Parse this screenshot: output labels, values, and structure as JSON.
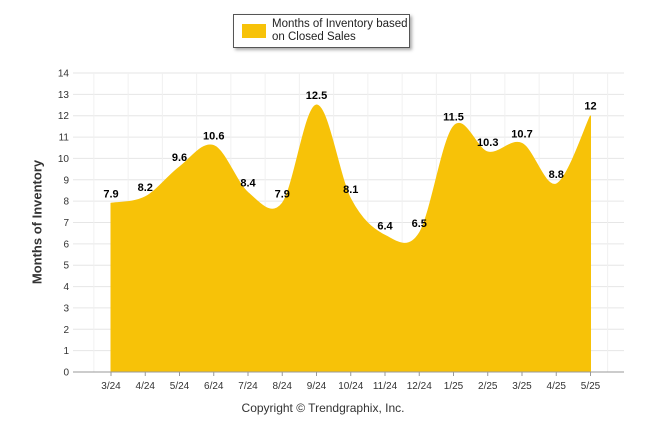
{
  "chart_data": {
    "type": "area",
    "categories": [
      "3/24",
      "4/24",
      "5/24",
      "6/24",
      "7/24",
      "8/24",
      "9/24",
      "10/24",
      "11/24",
      "12/24",
      "1/25",
      "2/25",
      "3/25",
      "4/25",
      "5/25"
    ],
    "series": [
      {
        "name": "Months of Inventory based on Closed Sales",
        "values": [
          7.9,
          8.2,
          9.6,
          10.6,
          8.4,
          7.9,
          12.5,
          8.1,
          6.4,
          6.5,
          11.5,
          10.3,
          10.7,
          8.8,
          12
        ],
        "data_labels": [
          "7.9",
          "8.2",
          "9.6",
          "10.6",
          "8.4",
          "7.9",
          "12.5",
          "8.1",
          "6.4",
          "6.5",
          "11.5",
          "10.3",
          "10.7",
          "8.8",
          "12"
        ],
        "color": "#F7C208"
      }
    ],
    "ylabel": "Months of Inventory",
    "xlabel": "",
    "ylim": [
      0,
      14
    ],
    "yticks": [
      "0",
      "1",
      "2",
      "3",
      "4",
      "5",
      "6",
      "7",
      "8",
      "9",
      "10",
      "11",
      "12",
      "13",
      "14"
    ],
    "grid": true,
    "legend_position": "top-center"
  },
  "legend": {
    "label": "Months of Inventory based on Closed Sales"
  },
  "footer": {
    "copyright": "Copyright © Trendgraphix, Inc."
  },
  "colors": {
    "fill": "#F7C208",
    "grid": "#e6e6e6",
    "axis": "#999999"
  }
}
